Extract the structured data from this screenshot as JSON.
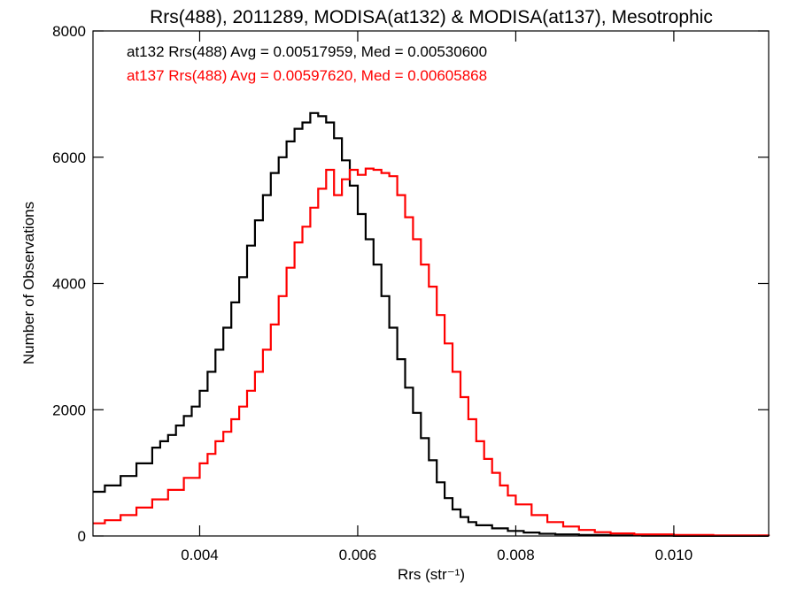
{
  "chart_data": {
    "type": "line",
    "title": "Rrs(488), 2011289, MODISA(at132) & MODISA(at137), Mesotrophic",
    "xlabel": "Rrs (str⁻¹)",
    "ylabel": "Number of Observations",
    "xlim": [
      0.00265,
      0.0112
    ],
    "ylim": [
      0,
      8000
    ],
    "x_ticks": [
      {
        "value": 0.004,
        "label": "0.004"
      },
      {
        "value": 0.006,
        "label": "0.006"
      },
      {
        "value": 0.008,
        "label": "0.008"
      },
      {
        "value": 0.01,
        "label": "0.010"
      }
    ],
    "y_ticks": [
      {
        "value": 0,
        "label": "0"
      },
      {
        "value": 2000,
        "label": "2000"
      },
      {
        "value": 4000,
        "label": "4000"
      },
      {
        "value": 6000,
        "label": "6000"
      },
      {
        "value": 8000,
        "label": "8000"
      }
    ],
    "grid": false,
    "step": true,
    "series": [
      {
        "color": "#000000",
        "annotation": "at132 Rrs(488) Avg = 0.00517959, Med = 0.00530600",
        "x": [
          0.00265,
          0.0028,
          0.003,
          0.0032,
          0.0034,
          0.0035,
          0.0036,
          0.0037,
          0.0038,
          0.0039,
          0.004,
          0.0041,
          0.0042,
          0.0043,
          0.0044,
          0.0045,
          0.0046,
          0.0047,
          0.0048,
          0.0049,
          0.005,
          0.0051,
          0.0052,
          0.0053,
          0.0054,
          0.0055,
          0.0056,
          0.0057,
          0.0058,
          0.0059,
          0.006,
          0.0061,
          0.0062,
          0.0063,
          0.0064,
          0.0065,
          0.0066,
          0.0067,
          0.0068,
          0.0069,
          0.007,
          0.0071,
          0.0072,
          0.0073,
          0.0074,
          0.0075,
          0.0077,
          0.0079,
          0.0081,
          0.0083,
          0.0085,
          0.0088,
          0.0092,
          0.0096,
          0.01,
          0.0112
        ],
        "y": [
          700,
          800,
          950,
          1150,
          1400,
          1500,
          1600,
          1750,
          1900,
          2050,
          2300,
          2600,
          2950,
          3300,
          3700,
          4100,
          4600,
          5000,
          5400,
          5750,
          6000,
          6250,
          6450,
          6550,
          6700,
          6650,
          6550,
          6300,
          5950,
          5550,
          5100,
          4700,
          4300,
          3800,
          3300,
          2800,
          2350,
          1950,
          1550,
          1200,
          850,
          600,
          420,
          300,
          220,
          170,
          120,
          80,
          55,
          35,
          25,
          15,
          8,
          5,
          2,
          0
        ]
      },
      {
        "color": "#ff0000",
        "annotation": "at137 Rrs(488) Avg = 0.00597620, Med = 0.00605868",
        "x": [
          0.00265,
          0.0028,
          0.003,
          0.0032,
          0.0034,
          0.0036,
          0.0038,
          0.004,
          0.0041,
          0.0042,
          0.0043,
          0.0044,
          0.0045,
          0.0046,
          0.0047,
          0.0048,
          0.0049,
          0.005,
          0.0051,
          0.0052,
          0.0053,
          0.0054,
          0.0055,
          0.0056,
          0.0057,
          0.0058,
          0.0059,
          0.006,
          0.0061,
          0.0062,
          0.0063,
          0.0064,
          0.0065,
          0.0066,
          0.0067,
          0.0068,
          0.0069,
          0.007,
          0.0071,
          0.0072,
          0.0073,
          0.0074,
          0.0075,
          0.0076,
          0.0077,
          0.0078,
          0.0079,
          0.008,
          0.0082,
          0.0084,
          0.0086,
          0.0088,
          0.009,
          0.0092,
          0.0095,
          0.01,
          0.0105,
          0.0112
        ],
        "y": [
          200,
          250,
          330,
          450,
          580,
          730,
          920,
          1150,
          1300,
          1500,
          1650,
          1850,
          2050,
          2300,
          2600,
          2950,
          3350,
          3800,
          4250,
          4650,
          4900,
          5200,
          5500,
          5800,
          5400,
          5650,
          5800,
          5720,
          5820,
          5800,
          5750,
          5700,
          5400,
          5050,
          4700,
          4300,
          3950,
          3500,
          3050,
          2600,
          2200,
          1850,
          1500,
          1220,
          1000,
          800,
          640,
          500,
          330,
          220,
          150,
          95,
          60,
          40,
          25,
          15,
          10,
          5
        ]
      }
    ]
  }
}
